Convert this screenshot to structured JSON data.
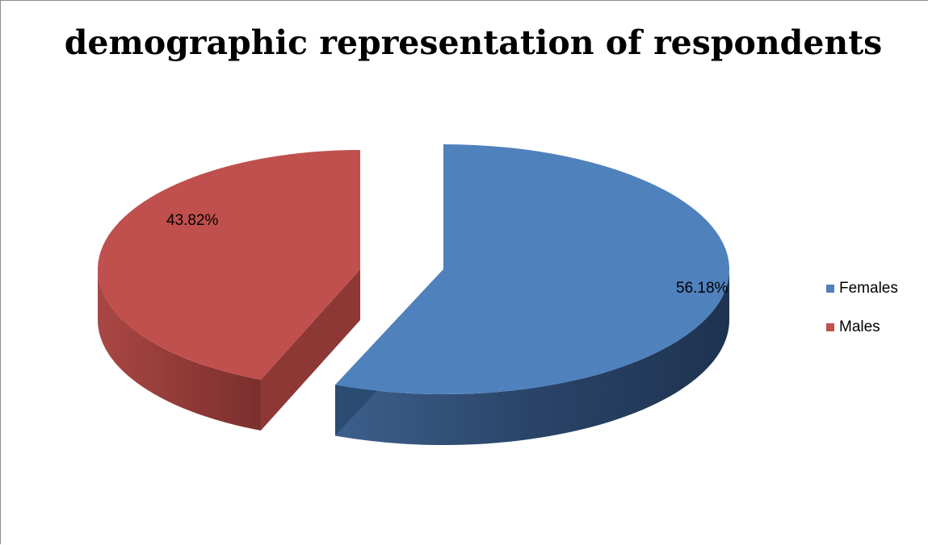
{
  "chart_data": {
    "type": "pie",
    "title": "demographic representation of respondents",
    "slices": [
      {
        "name": "Females",
        "value": 56.18,
        "label": "56.18%",
        "color": "#4f81bd"
      },
      {
        "name": "Males",
        "value": 43.82,
        "label": "43.82%",
        "color": "#c0504d"
      }
    ],
    "exploded": true,
    "style": "3d",
    "legend_position": "right"
  }
}
